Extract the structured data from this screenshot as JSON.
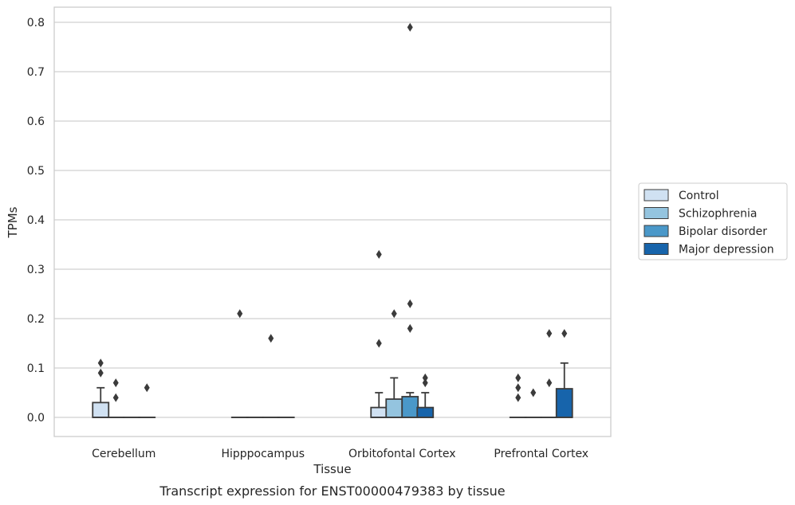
{
  "caption": "Transcript expression for ENST00000479383 by tissue",
  "chart_data": {
    "type": "box",
    "title": "",
    "xlabel": "Tissue",
    "ylabel": "TPMs",
    "ylim": [
      -0.04,
      0.83
    ],
    "yticks": [
      0.0,
      0.1,
      0.2,
      0.3,
      0.4,
      0.5,
      0.6,
      0.7,
      0.8
    ],
    "ytick_labels": [
      "0.0",
      "0.1",
      "0.2",
      "0.3",
      "0.4",
      "0.5",
      "0.6",
      "0.7",
      "0.8"
    ],
    "grid": "horizontal",
    "legend_position": "right",
    "categories": [
      "Cerebellum",
      "Hipppocampus",
      "Orbitofontal Cortex",
      "Prefrontal Cortex"
    ],
    "series": [
      {
        "name": "Control",
        "color": "#d0e1f2",
        "boxes": [
          {
            "q1": 0.0,
            "median": 0.0,
            "q3": 0.03,
            "whisker_low": 0.0,
            "whisker_high": 0.06,
            "outliers": [
              0.09,
              0.11
            ]
          },
          {
            "q1": 0.0,
            "median": 0.0,
            "q3": 0.0,
            "whisker_low": 0.0,
            "whisker_high": 0.0,
            "outliers": [
              0.21
            ]
          },
          {
            "q1": 0.0,
            "median": 0.0,
            "q3": 0.02,
            "whisker_low": 0.0,
            "whisker_high": 0.05,
            "outliers": [
              0.15,
              0.33
            ]
          },
          {
            "q1": 0.0,
            "median": 0.0,
            "q3": 0.0,
            "whisker_low": 0.0,
            "whisker_high": 0.0,
            "outliers": [
              0.04,
              0.06,
              0.08
            ]
          }
        ]
      },
      {
        "name": "Schizophrenia",
        "color": "#94c4df",
        "boxes": [
          {
            "q1": 0.0,
            "median": 0.0,
            "q3": 0.0,
            "whisker_low": 0.0,
            "whisker_high": 0.0,
            "outliers": [
              0.04,
              0.07
            ]
          },
          {
            "q1": 0.0,
            "median": 0.0,
            "q3": 0.0,
            "whisker_low": 0.0,
            "whisker_high": 0.0,
            "outliers": []
          },
          {
            "q1": 0.0,
            "median": 0.0,
            "q3": 0.037,
            "whisker_low": 0.0,
            "whisker_high": 0.08,
            "outliers": [
              0.21
            ]
          },
          {
            "q1": 0.0,
            "median": 0.0,
            "q3": 0.0,
            "whisker_low": 0.0,
            "whisker_high": 0.0,
            "outliers": [
              0.05
            ]
          }
        ]
      },
      {
        "name": "Bipolar disorder",
        "color": "#4a98c9",
        "boxes": [
          {
            "q1": 0.0,
            "median": 0.0,
            "q3": 0.0,
            "whisker_low": 0.0,
            "whisker_high": 0.0,
            "outliers": []
          },
          {
            "q1": 0.0,
            "median": 0.0,
            "q3": 0.0,
            "whisker_low": 0.0,
            "whisker_high": 0.0,
            "outliers": [
              0.16
            ]
          },
          {
            "q1": 0.0,
            "median": 0.0,
            "q3": 0.042,
            "whisker_low": 0.0,
            "whisker_high": 0.05,
            "outliers": [
              0.18,
              0.23,
              0.79
            ]
          },
          {
            "q1": 0.0,
            "median": 0.0,
            "q3": 0.0,
            "whisker_low": 0.0,
            "whisker_high": 0.0,
            "outliers": [
              0.07,
              0.17
            ]
          }
        ]
      },
      {
        "name": "Major depression",
        "color": "#1764ab",
        "boxes": [
          {
            "q1": 0.0,
            "median": 0.0,
            "q3": 0.0,
            "whisker_low": 0.0,
            "whisker_high": 0.0,
            "outliers": [
              0.06
            ]
          },
          {
            "q1": 0.0,
            "median": 0.0,
            "q3": 0.0,
            "whisker_low": 0.0,
            "whisker_high": 0.0,
            "outliers": []
          },
          {
            "q1": 0.0,
            "median": 0.0,
            "q3": 0.02,
            "whisker_low": 0.0,
            "whisker_high": 0.05,
            "outliers": [
              0.07,
              0.08
            ]
          },
          {
            "q1": 0.0,
            "median": 0.0,
            "q3": 0.058,
            "whisker_low": 0.0,
            "whisker_high": 0.11,
            "outliers": [
              0.17
            ]
          }
        ]
      }
    ]
  }
}
